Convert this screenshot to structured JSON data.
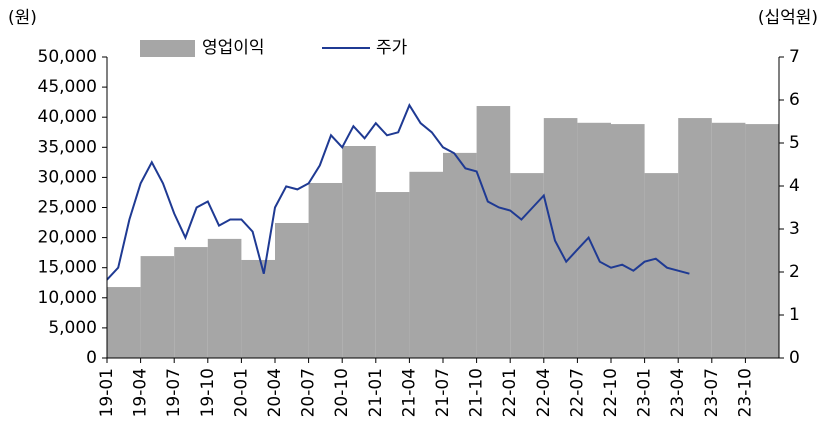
{
  "chart_data": {
    "type": "bar-line",
    "y_label": "(원)",
    "y2_label": "(십억원)",
    "categories": [
      "19-01",
      "19-04",
      "19-07",
      "19-10",
      "20-01",
      "20-04",
      "20-07",
      "20-10",
      "21-01",
      "21-04",
      "21-07",
      "21-10",
      "22-01",
      "22-04",
      "22-07",
      "22-10",
      "23-01",
      "23-04",
      "23-07",
      "23-10"
    ],
    "ylim": [
      0,
      50000
    ],
    "yticks": [
      0,
      {
        "value": 5000,
        "label": "5,000"
      },
      {
        "value": 10000,
        "label": "10,000"
      },
      {
        "value": 15000,
        "label": "15,000"
      },
      {
        "value": 20000,
        "label": "20,000"
      },
      {
        "value": 25000,
        "label": "25,000"
      },
      {
        "value": 30000,
        "label": "30,000"
      },
      {
        "value": 35000,
        "label": "35,000"
      },
      {
        "value": 40000,
        "label": "40,000"
      },
      {
        "value": 45000,
        "label": "45,000"
      },
      {
        "value": 50000,
        "label": "50,000"
      }
    ],
    "y2lim": [
      0,
      7
    ],
    "y2ticks": [
      0,
      1,
      2,
      3,
      4,
      5,
      6,
      7
    ],
    "series": [
      {
        "name": "영업이익",
        "type": "bar",
        "axis": "y2",
        "color": "#a6a6a6",
        "values": [
          1.65,
          2.37,
          2.58,
          2.77,
          2.28,
          3.14,
          4.07,
          4.93,
          3.86,
          4.33,
          4.77,
          5.86,
          4.3,
          5.58,
          5.47,
          5.44,
          4.3,
          5.58,
          5.47,
          5.44
        ]
      },
      {
        "name": "주가",
        "type": "line",
        "color": "#1f3a93",
        "x": [
          "19-01",
          "19-02",
          "19-03",
          "19-04",
          "19-05",
          "19-06",
          "19-07",
          "19-08",
          "19-09",
          "19-10",
          "19-11",
          "19-12",
          "20-01",
          "20-02",
          "20-03",
          "20-04",
          "20-05",
          "20-06",
          "20-07",
          "20-08",
          "20-09",
          "20-10",
          "20-11",
          "20-12",
          "21-01",
          "21-02",
          "21-03",
          "21-04",
          "21-05",
          "21-06",
          "21-07",
          "21-08",
          "21-09",
          "21-10",
          "21-11",
          "21-12",
          "22-01",
          "22-02",
          "22-03",
          "22-04",
          "22-05",
          "22-06",
          "22-07",
          "22-08",
          "22-09",
          "22-10",
          "22-11",
          "22-12",
          "23-01",
          "23-02",
          "23-03",
          "23-04",
          "23-05"
        ],
        "values": [
          13000,
          15000,
          23000,
          29000,
          32500,
          29000,
          24000,
          20000,
          25000,
          26000,
          22000,
          23000,
          23000,
          21000,
          14000,
          25000,
          28500,
          28000,
          29000,
          32000,
          37000,
          35000,
          38500,
          36500,
          39000,
          37000,
          37500,
          42000,
          39000,
          37500,
          35000,
          34000,
          31500,
          31000,
          26000,
          25000,
          24500,
          23000,
          25000,
          27000,
          19500,
          16000,
          18000,
          20000,
          16000,
          15000,
          15500,
          14500,
          16000,
          16500,
          15000,
          14500,
          14000
        ]
      }
    ]
  }
}
